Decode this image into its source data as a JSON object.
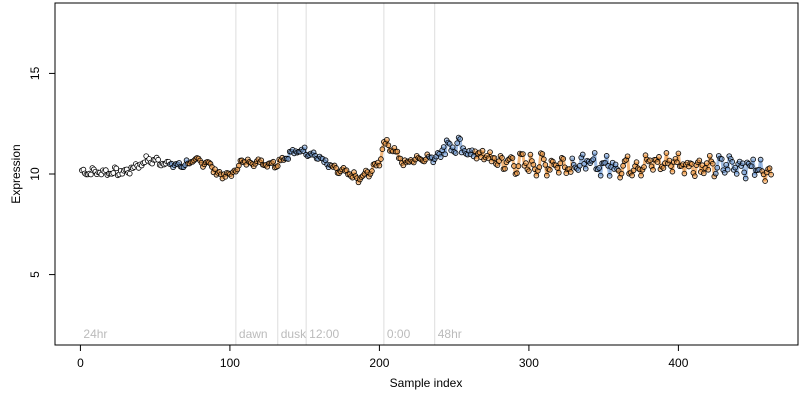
{
  "chart_data": {
    "type": "scatter",
    "title": "",
    "xlabel": "Sample index",
    "ylabel": "Expression",
    "xlim": [
      -17,
      480
    ],
    "ylim": [
      1.5,
      18.5
    ],
    "x_ticks": [
      0,
      100,
      200,
      300,
      400
    ],
    "y_ticks": [
      5,
      10,
      15
    ],
    "x_tick_labels": [
      "0",
      "100",
      "200",
      "300",
      "400"
    ],
    "y_tick_labels": [
      "5",
      "10",
      "15"
    ],
    "colors": {
      "points_fill": "#ffffff",
      "points_stroke": "#000000",
      "light_phase": "#f0a050",
      "dark_phase": "#7fa6d8",
      "phase_line": "#dddddd",
      "phase_label": "#bbbbbb"
    },
    "phase_markers": [
      {
        "x": 0,
        "label": "24hr",
        "line": false
      },
      {
        "x": 104,
        "label": "dawn",
        "line": true
      },
      {
        "x": 132,
        "label": "dusk",
        "line": true
      },
      {
        "x": 151,
        "label": "12:00",
        "line": true
      },
      {
        "x": 203,
        "label": "0:00",
        "line": true
      },
      {
        "x": 237,
        "label": "48hr",
        "line": true
      }
    ],
    "series": [
      {
        "x_start": 1,
        "x_end": 462,
        "y_knots": [
          [
            1,
            10.1
          ],
          [
            20,
            10.1
          ],
          [
            30,
            10.1
          ],
          [
            45,
            10.7
          ],
          [
            55,
            10.6
          ],
          [
            65,
            10.4
          ],
          [
            75,
            10.6
          ],
          [
            85,
            10.6
          ],
          [
            92,
            10.0
          ],
          [
            100,
            9.9
          ],
          [
            108,
            10.6
          ],
          [
            120,
            10.6
          ],
          [
            130,
            10.5
          ],
          [
            140,
            11.0
          ],
          [
            150,
            11.2
          ],
          [
            160,
            10.8
          ],
          [
            170,
            10.2
          ],
          [
            180,
            10.0
          ],
          [
            186,
            9.7
          ],
          [
            195,
            10.2
          ],
          [
            200,
            10.6
          ],
          [
            203,
            11.6
          ],
          [
            210,
            11.2
          ],
          [
            216,
            10.5
          ],
          [
            225,
            10.8
          ],
          [
            237,
            10.8
          ],
          [
            245,
            11.5
          ],
          [
            255,
            11.2
          ],
          [
            265,
            11.0
          ],
          [
            280,
            10.6
          ],
          [
            300,
            10.5
          ],
          [
            320,
            10.5
          ],
          [
            340,
            10.5
          ],
          [
            360,
            10.4
          ],
          [
            380,
            10.5
          ],
          [
            400,
            10.6
          ],
          [
            420,
            10.3
          ],
          [
            440,
            10.5
          ],
          [
            462,
            10.1
          ]
        ]
      }
    ]
  }
}
